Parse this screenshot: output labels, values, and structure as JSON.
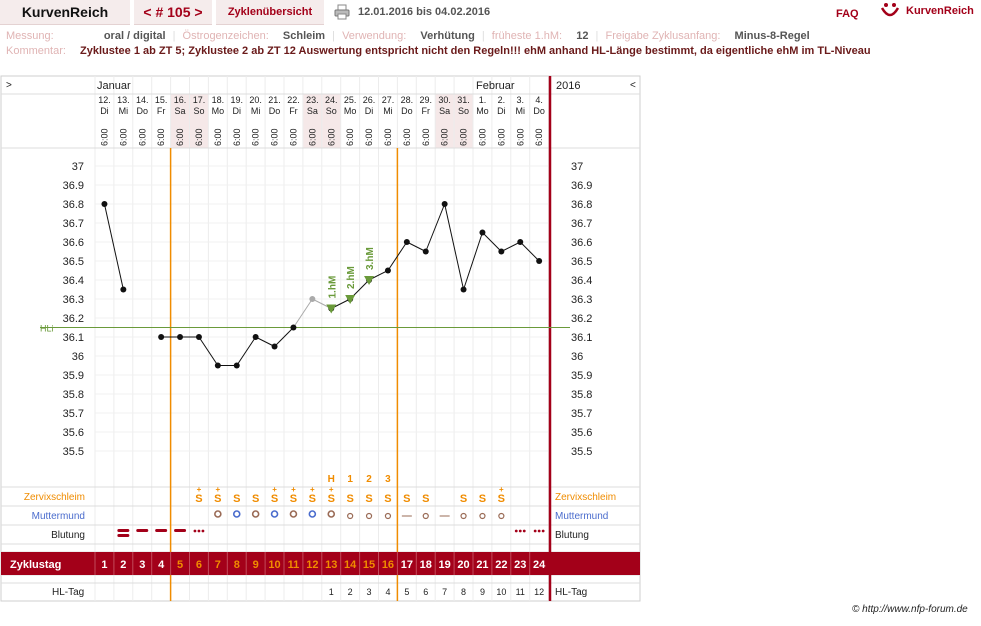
{
  "header": {
    "brand": "KurvenReich",
    "cycle_number": "< # 105 >",
    "overview_label": "Zyklenübersicht",
    "date_range": "12.01.2016 bis 04.02.2016",
    "faq_label": "FAQ",
    "logo_text": "KurvenReich"
  },
  "meta": {
    "messung_label": "Messung:",
    "messung_value": "oral / digital",
    "oestrogen_label": "Östrogenzeichen:",
    "oestrogen_value": "Schleim",
    "verwendung_label": "Verwendung:",
    "verwendung_value": "Verhütung",
    "fruehest_label": "früheste 1.hM:",
    "fruehest_value": "12",
    "freigabe_label": "Freigabe Zyklusanfang:",
    "freigabe_value": "Minus-8-Regel",
    "kommentar_label": "Kommentar:",
    "kommentar_value": "Zyklustee 1 ab ZT 5; Zyklustee 2 ab ZT 12 Auswertung entspricht nicht den Regeln!!! ehM anhand HL-Länge bestimmt, da eigentliche ehM im TL-Niveau"
  },
  "chart_data": {
    "type": "line",
    "nav_left": ">",
    "nav_right": "<",
    "month_labels": [
      "Januar",
      "Februar"
    ],
    "year": "2016",
    "days": [
      {
        "d": "12.",
        "w": "Di",
        "t": "6:00"
      },
      {
        "d": "13.",
        "w": "Mi",
        "t": "6:00"
      },
      {
        "d": "14.",
        "w": "Do",
        "t": "6:00"
      },
      {
        "d": "15.",
        "w": "Fr",
        "t": "6:00"
      },
      {
        "d": "16.",
        "w": "Sa",
        "t": "6:00"
      },
      {
        "d": "17.",
        "w": "So",
        "t": "6:00"
      },
      {
        "d": "18.",
        "w": "Mo",
        "t": "6:00"
      },
      {
        "d": "19.",
        "w": "Di",
        "t": "6:00"
      },
      {
        "d": "20.",
        "w": "Mi",
        "t": "6:00"
      },
      {
        "d": "21.",
        "w": "Do",
        "t": "6:00"
      },
      {
        "d": "22.",
        "w": "Fr",
        "t": "6:00"
      },
      {
        "d": "23.",
        "w": "Sa",
        "t": "6:00"
      },
      {
        "d": "24.",
        "w": "So",
        "t": "6:00"
      },
      {
        "d": "25.",
        "w": "Mo",
        "t": "6:00"
      },
      {
        "d": "26.",
        "w": "Di",
        "t": "6:00"
      },
      {
        "d": "27.",
        "w": "Mi",
        "t": "6:00"
      },
      {
        "d": "28.",
        "w": "Do",
        "t": "6:00"
      },
      {
        "d": "29.",
        "w": "Fr",
        "t": "6:00"
      },
      {
        "d": "30.",
        "w": "Sa",
        "t": "6:00"
      },
      {
        "d": "31.",
        "w": "So",
        "t": "6:00"
      },
      {
        "d": "1.",
        "w": "Mo",
        "t": "6:00"
      },
      {
        "d": "2.",
        "w": "Di",
        "t": "6:00"
      },
      {
        "d": "3.",
        "w": "Mi",
        "t": "6:00"
      },
      {
        "d": "4.",
        "w": "Do",
        "t": "6:00"
      }
    ],
    "weekend_indices": [
      4,
      5,
      11,
      12,
      18,
      19
    ],
    "y_ticks": [
      "37",
      "36.9",
      "36.8",
      "36.7",
      "36.6",
      "36.5",
      "36.4",
      "36.3",
      "36.2",
      "36.1",
      "36",
      "35.9",
      "35.8",
      "35.7",
      "35.6",
      "35.5"
    ],
    "ylim": [
      35.5,
      37.0
    ],
    "temps": [
      36.8,
      36.35,
      null,
      36.1,
      36.1,
      36.1,
      35.95,
      35.95,
      36.1,
      36.05,
      36.15,
      36.3,
      36.25,
      36.3,
      36.4,
      36.45,
      36.6,
      36.55,
      36.8,
      36.35,
      36.65,
      36.55,
      36.6,
      36.5
    ],
    "excluded_indices": [
      11
    ],
    "cover_line": 36.15,
    "cover_line_label": "HLi",
    "high_markers": [
      {
        "i": 12,
        "label": "1.hM"
      },
      {
        "i": 13,
        "label": "2.hM"
      },
      {
        "i": 14,
        "label": "3.hM"
      }
    ],
    "vertical_markers": [
      4,
      16
    ],
    "hm_row": [
      {
        "i": 12,
        "t": "H"
      },
      {
        "i": 13,
        "t": "1"
      },
      {
        "i": 14,
        "t": "2"
      },
      {
        "i": 15,
        "t": "3"
      }
    ],
    "row_labels": {
      "zervix": "Zervixschleim",
      "mumu": "Muttermund",
      "blutung": "Blutung",
      "zyklustag": "Zyklustag",
      "hltag": "HL-Tag"
    },
    "zervix": [
      "",
      "",
      "",
      "",
      "",
      "S+",
      "S+",
      "S",
      "S",
      "S+",
      "S+",
      "S+",
      "S+",
      "S",
      "S",
      "S",
      "S",
      "S",
      "",
      "S",
      "S",
      "S+",
      "",
      ""
    ],
    "mumu": [
      "",
      "",
      "",
      "",
      "",
      "",
      "o",
      "o",
      "o",
      "o",
      "o",
      "o",
      "o",
      "•",
      "•",
      "•",
      "-",
      "•",
      "-",
      "•",
      "•",
      "•",
      "",
      ""
    ],
    "blutung": [
      "",
      "bar",
      "bar",
      "bar",
      "bar",
      "dots",
      "",
      "",
      "",
      "",
      "",
      "",
      "",
      "",
      "",
      "",
      "",
      "",
      "",
      "",
      "",
      "",
      "dots",
      "dots"
    ],
    "zyklustag": [
      "1",
      "2",
      "3",
      "4",
      "5",
      "6",
      "7",
      "8",
      "9",
      "10",
      "11",
      "12",
      "13",
      "14",
      "15",
      "16",
      "17",
      "18",
      "19",
      "20",
      "21",
      "22",
      "23",
      "24"
    ],
    "hltag": [
      "",
      "",
      "",
      "",
      "",
      "",
      "",
      "",
      "",
      "",
      "",
      "",
      "1",
      "2",
      "3",
      "4",
      "5",
      "6",
      "7",
      "8",
      "9",
      "10",
      "11",
      "12"
    ],
    "colors": {
      "accent": "#a30019",
      "orange": "#f08c00",
      "line": "#111111",
      "cover": "#6a9a3a",
      "weekend": "#f5e8e8",
      "grid": "#e2e2e2"
    }
  },
  "footer": {
    "credit": "© http://www.nfp-forum.de"
  }
}
